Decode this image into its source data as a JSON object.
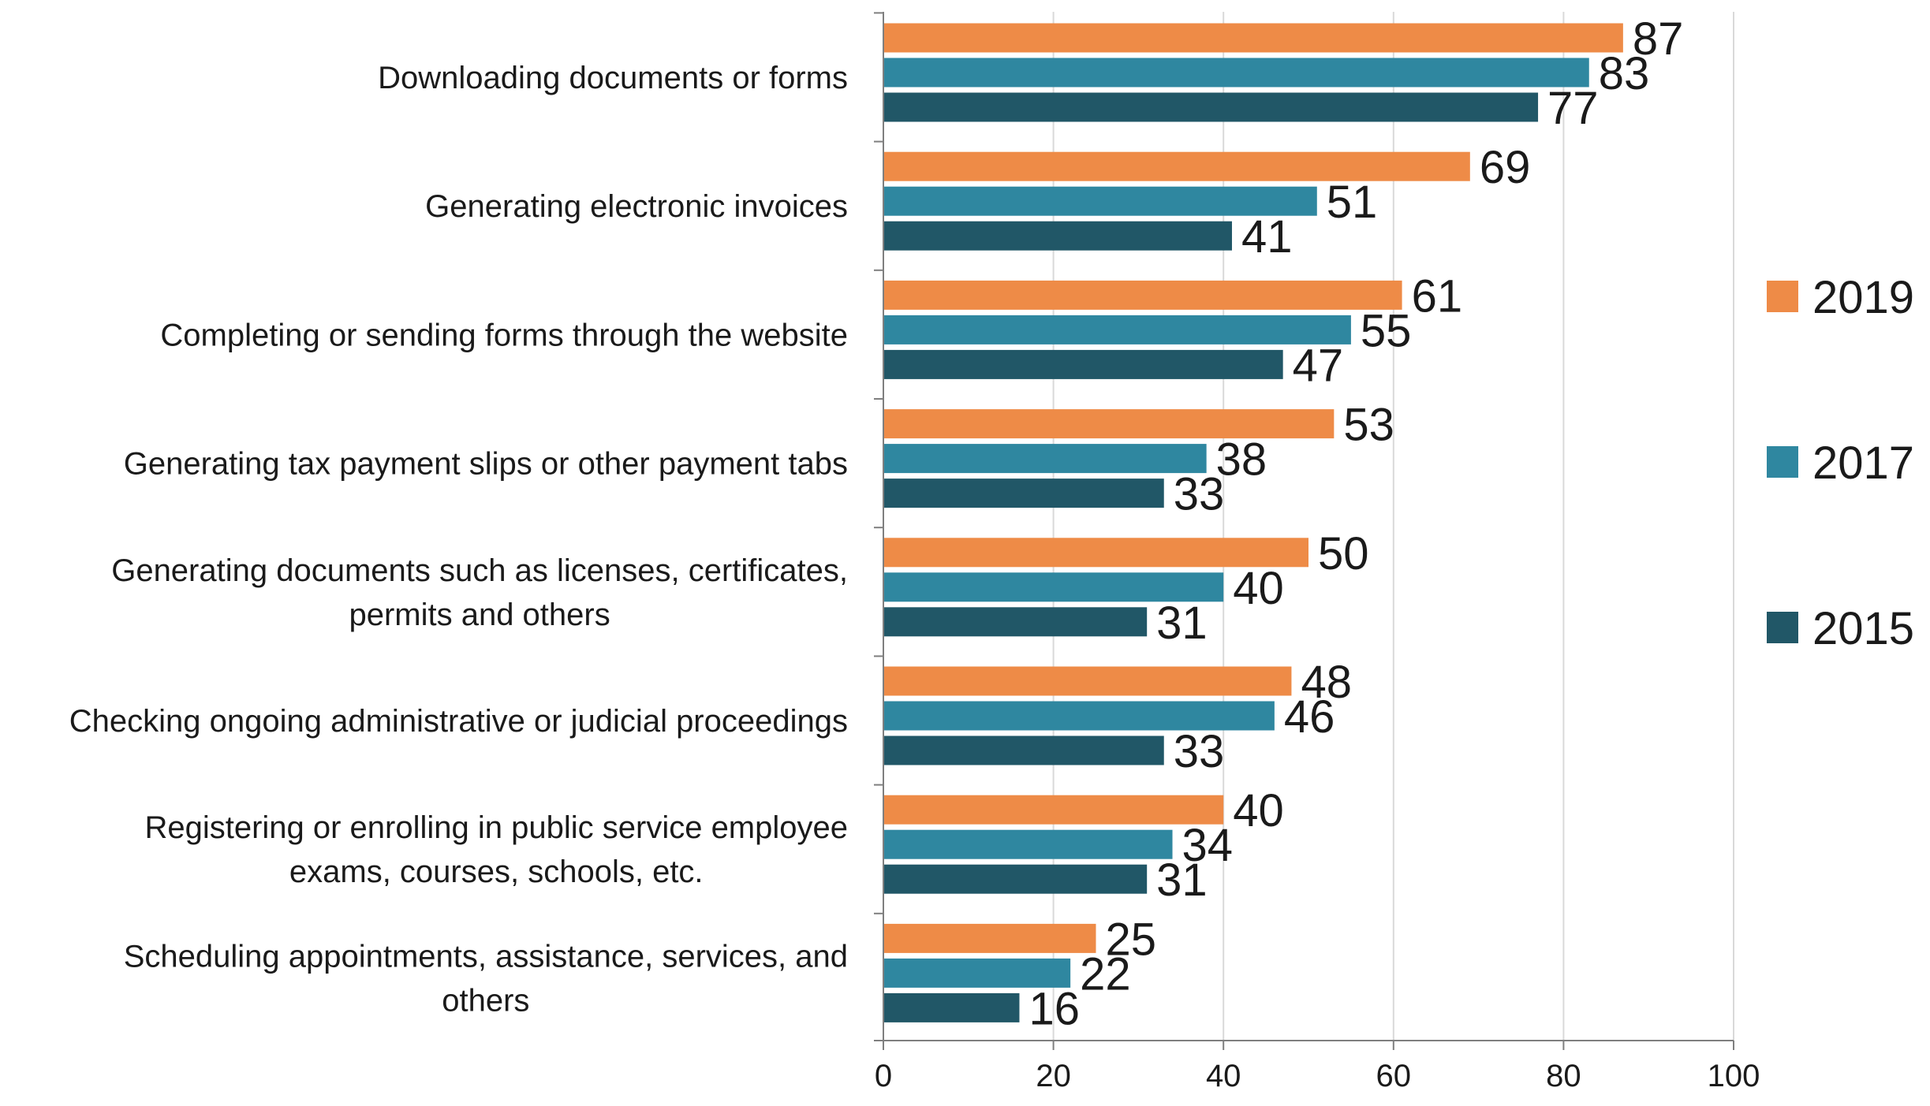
{
  "chart_data": {
    "type": "bar",
    "orientation": "horizontal",
    "title": "",
    "xlabel": "",
    "ylabel": "",
    "xlim": [
      0,
      100
    ],
    "x_ticks": [
      "0",
      "20",
      "40",
      "60",
      "80",
      "100"
    ],
    "grid": "vertical",
    "legend_position": "right",
    "categories": [
      [
        "Downloading documents or forms"
      ],
      [
        "Generating electronic invoices"
      ],
      [
        "Completing or sending forms through the website"
      ],
      [
        "Generating tax payment slips or other payment tabs"
      ],
      [
        "Generating documents such as licenses, certificates,",
        "permits and others"
      ],
      [
        "Checking ongoing administrative or judicial proceedings"
      ],
      [
        "Registering or enrolling in public service employee",
        "exams, courses, schools, etc."
      ],
      [
        "Scheduling appointments, assistance, services, and",
        "others"
      ]
    ],
    "series": [
      {
        "name": "2019",
        "color": "#EE8B47",
        "values": [
          87,
          69,
          61,
          53,
          50,
          48,
          40,
          25
        ]
      },
      {
        "name": "2017",
        "color": "#2F87A0",
        "values": [
          83,
          51,
          55,
          38,
          40,
          46,
          34,
          22
        ]
      },
      {
        "name": "2015",
        "color": "#215767",
        "values": [
          77,
          41,
          47,
          33,
          31,
          33,
          31,
          16
        ]
      }
    ]
  },
  "colors": {
    "axis": "#7f7f7f",
    "grid": "#d9d9d9",
    "text": "#1a1a1a"
  }
}
